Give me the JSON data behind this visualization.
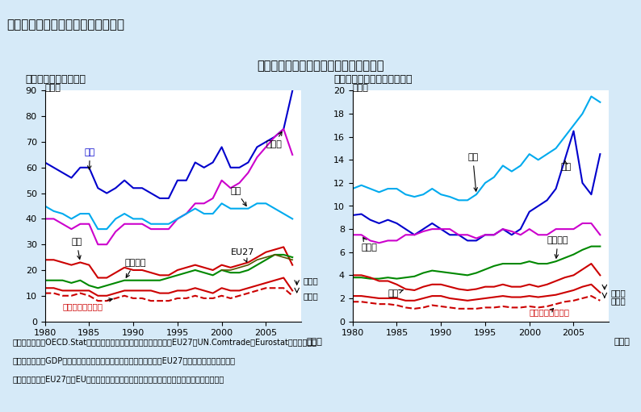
{
  "title_header": "第２－１－９図　貿易開放度の推移",
  "main_title": "日本の貿易開放度は各国と比較して低い",
  "left_subtitle": "（１）財の貿易開放度",
  "right_subtitle": "（２）サービスの貿易開放度",
  "ylabel": "（％）",
  "xlabel": "（年）",
  "background_color": "#d6eaf8",
  "plot_bg": "#ffffff",
  "header_bg": "#a8c8e0",
  "years": [
    1980,
    1981,
    1982,
    1983,
    1984,
    1985,
    1986,
    1987,
    1988,
    1989,
    1990,
    1991,
    1992,
    1993,
    1994,
    1995,
    1996,
    1997,
    1998,
    1999,
    2000,
    2001,
    2002,
    2003,
    2004,
    2005,
    2006,
    2007,
    2008
  ],
  "chart1": {
    "ylim": [
      0,
      90
    ],
    "yticks": [
      0,
      10,
      20,
      30,
      40,
      50,
      60,
      70,
      80,
      90
    ],
    "series": {
      "韓国": {
        "color": "#0000cc",
        "style": "solid",
        "data": [
          62,
          60,
          58,
          56,
          60,
          60,
          52,
          50,
          52,
          55,
          52,
          52,
          50,
          48,
          48,
          55,
          55,
          62,
          60,
          62,
          68,
          60,
          60,
          62,
          68,
          70,
          72,
          75,
          90
        ]
      },
      "ドイツ": {
        "color": "#cc00cc",
        "style": "solid",
        "data": [
          40,
          40,
          38,
          36,
          38,
          38,
          30,
          30,
          35,
          38,
          38,
          38,
          36,
          36,
          36,
          40,
          42,
          46,
          46,
          48,
          55,
          52,
          54,
          58,
          64,
          68,
          72,
          75,
          65
        ]
      },
      "英国": {
        "color": "#00aaee",
        "style": "solid",
        "data": [
          45,
          43,
          42,
          40,
          42,
          42,
          36,
          36,
          40,
          42,
          40,
          40,
          38,
          38,
          38,
          40,
          42,
          44,
          42,
          42,
          46,
          44,
          44,
          44,
          46,
          46,
          44,
          42,
          40
        ]
      },
      "日本": {
        "color": "#cc0000",
        "style": "solid",
        "data": [
          24,
          24,
          23,
          22,
          23,
          22,
          17,
          17,
          19,
          21,
          20,
          20,
          19,
          18,
          18,
          20,
          21,
          22,
          21,
          20,
          22,
          21,
          22,
          23,
          25,
          27,
          28,
          29,
          22
        ]
      },
      "アメリカ": {
        "color": "#008800",
        "style": "solid",
        "data": [
          16,
          16,
          16,
          15,
          16,
          14,
          13,
          14,
          15,
          16,
          16,
          16,
          16,
          16,
          17,
          18,
          19,
          20,
          19,
          18,
          20,
          19,
          19,
          20,
          22,
          24,
          26,
          26,
          25
        ]
      },
      "EU27": {
        "color": "#555500",
        "style": "solid",
        "data": [
          null,
          null,
          null,
          null,
          null,
          null,
          null,
          null,
          null,
          null,
          null,
          null,
          null,
          null,
          null,
          null,
          null,
          null,
          null,
          null,
          20,
          20,
          21,
          22,
          24,
          25,
          26,
          25,
          24
        ]
      },
      "日本_輸入分": {
        "color": "#cc0000",
        "style": "solid",
        "data": [
          13,
          13,
          12,
          12,
          12,
          12,
          10,
          10,
          11,
          12,
          12,
          12,
          12,
          11,
          11,
          12,
          12,
          13,
          12,
          11,
          13,
          12,
          12,
          13,
          14,
          15,
          16,
          17,
          12
        ]
      },
      "日本_輸出のみ": {
        "color": "#cc0000",
        "style": "dashed",
        "data": [
          11,
          11,
          10,
          10,
          11,
          10,
          8,
          8,
          9,
          10,
          9,
          9,
          8,
          8,
          8,
          9,
          9,
          10,
          9,
          9,
          10,
          9,
          10,
          11,
          12,
          13,
          13,
          13,
          10
        ]
      }
    }
  },
  "chart2": {
    "ylim": [
      0,
      20
    ],
    "yticks": [
      0,
      2,
      4,
      6,
      8,
      10,
      12,
      14,
      16,
      18,
      20
    ],
    "series": {
      "英国": {
        "color": "#00aaee",
        "style": "solid",
        "data": [
          11.5,
          11.8,
          11.5,
          11.2,
          11.5,
          11.5,
          11.0,
          10.8,
          11.0,
          11.5,
          11.0,
          10.8,
          10.5,
          10.5,
          11.0,
          12.0,
          12.5,
          13.5,
          13.0,
          13.5,
          14.5,
          14.0,
          14.5,
          15.0,
          16.0,
          17.0,
          18.0,
          19.5,
          19.0
        ]
      },
      "韓国": {
        "color": "#0000cc",
        "style": "solid",
        "data": [
          9.2,
          9.3,
          8.8,
          8.5,
          8.8,
          8.5,
          8.0,
          7.5,
          8.0,
          8.5,
          8.0,
          7.5,
          7.5,
          7.0,
          7.0,
          7.5,
          7.5,
          8.0,
          7.5,
          8.0,
          9.5,
          10.0,
          10.5,
          11.5,
          14.0,
          16.5,
          12.0,
          11.0,
          14.5
        ]
      },
      "ドイツ": {
        "color": "#cc00cc",
        "style": "solid",
        "data": [
          7.5,
          7.5,
          7.0,
          6.8,
          7.0,
          7.0,
          7.5,
          7.5,
          7.8,
          8.0,
          8.0,
          8.0,
          7.5,
          7.5,
          7.2,
          7.5,
          7.5,
          8.0,
          7.8,
          7.5,
          8.0,
          7.5,
          7.5,
          8.0,
          8.0,
          8.0,
          8.5,
          8.5,
          7.5
        ]
      },
      "アメリカ": {
        "color": "#008800",
        "style": "solid",
        "data": [
          3.8,
          3.8,
          3.7,
          3.7,
          3.8,
          3.7,
          3.8,
          3.9,
          4.2,
          4.4,
          4.3,
          4.2,
          4.1,
          4.0,
          4.2,
          4.5,
          4.8,
          5.0,
          5.0,
          5.0,
          5.2,
          5.0,
          5.0,
          5.2,
          5.5,
          5.8,
          6.2,
          6.5,
          6.5
        ]
      },
      "日本": {
        "color": "#cc0000",
        "style": "solid",
        "data": [
          4.0,
          4.0,
          3.8,
          3.5,
          3.5,
          3.2,
          2.8,
          2.7,
          3.0,
          3.2,
          3.2,
          3.0,
          2.8,
          2.7,
          2.8,
          3.0,
          3.0,
          3.2,
          3.0,
          3.0,
          3.2,
          3.0,
          3.2,
          3.5,
          3.8,
          4.0,
          4.5,
          5.0,
          4.0
        ]
      },
      "日本_輸入分": {
        "color": "#cc0000",
        "style": "solid",
        "data": [
          2.2,
          2.2,
          2.1,
          2.0,
          2.0,
          2.0,
          1.8,
          1.8,
          2.0,
          2.2,
          2.2,
          2.0,
          1.9,
          1.8,
          1.9,
          2.0,
          2.1,
          2.2,
          2.1,
          2.1,
          2.2,
          2.1,
          2.2,
          2.3,
          2.5,
          2.7,
          3.0,
          3.2,
          2.5
        ]
      },
      "日本_輸出のみ": {
        "color": "#cc0000",
        "style": "dashed",
        "data": [
          1.7,
          1.7,
          1.6,
          1.5,
          1.5,
          1.4,
          1.2,
          1.1,
          1.2,
          1.4,
          1.3,
          1.2,
          1.1,
          1.1,
          1.1,
          1.2,
          1.2,
          1.3,
          1.2,
          1.2,
          1.3,
          1.2,
          1.3,
          1.5,
          1.7,
          1.8,
          2.0,
          2.2,
          1.8
        ]
      }
    }
  },
  "notes": [
    "（備考）　１．OECD.Stat、内閣府「国民経済計算」により作成、EU27はUN.Comtrade、Eurostatにより作成。",
    "　　　　　２．GDP、輸出入額は名目、自国通貨ベースより計算。EU27についてはドルベース。",
    "　　　　　３．EU27は、EU域外との貿易に関する開放度を算出（域内貿易は除いている）。"
  ]
}
